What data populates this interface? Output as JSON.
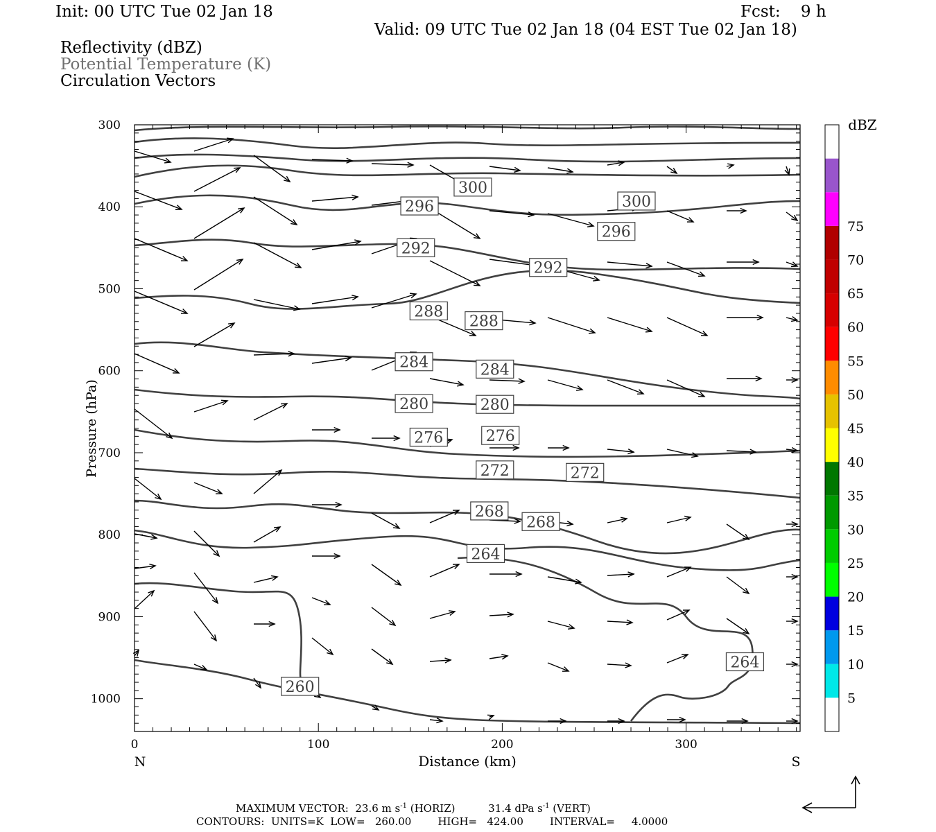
{
  "header": {
    "init": "Init: 00 UTC Tue 02 Jan 18",
    "fcst": "Fcst:    9 h",
    "valid": "Valid: 09 UTC Tue 02 Jan 18 (04 EST Tue 02 Jan 18)",
    "field1": "Reflectivity (dBZ)",
    "field2": "Potential Temperature (K)",
    "field3": "Circulation Vectors"
  },
  "footer": {
    "line1_prefix": "MAXIMUM VECTOR:  23.6 m s",
    "line1_mid": " (HORIZ)          31.4 dPa s",
    "line1_suffix": " (VERT)",
    "exp": "-1",
    "line2": "CONTOURS:  UNITS=K  LOW=   260.00        HIGH=   424.00        INTERVAL=     4.0000"
  },
  "colors": {
    "contour": "#404040",
    "scale": [
      "#ffffff",
      "#00e8e8",
      "#0099ee",
      "#0000e0",
      "#00ff00",
      "#00cc00",
      "#009900",
      "#007700",
      "#ffff00",
      "#e6c200",
      "#ff8c00",
      "#ff0000",
      "#d60000",
      "#c00000",
      "#b00000",
      "#ff00ff",
      "#9955cc",
      "#ffffff"
    ]
  },
  "chart_data": {
    "type": "cross-section",
    "xlabel": "Distance (km)",
    "ylabel": "Pressure (hPa)",
    "xlim": [
      0,
      362
    ],
    "ylim": [
      1040,
      300
    ],
    "x_ticks": [
      0,
      100,
      200,
      300
    ],
    "y_ticks": [
      300,
      400,
      500,
      600,
      700,
      800,
      900,
      1000
    ],
    "x_end_labels": {
      "left": "N",
      "right": "S"
    },
    "colorbar": {
      "unit": "dBZ",
      "ticks": [
        5,
        10,
        15,
        20,
        25,
        30,
        35,
        40,
        45,
        50,
        55,
        60,
        65,
        70,
        75
      ]
    },
    "contour_labels": [
      {
        "value": "300",
        "x": 184,
        "p": 376
      },
      {
        "value": "300",
        "x": 273,
        "p": 393
      },
      {
        "value": "296",
        "x": 155,
        "p": 399
      },
      {
        "value": "296",
        "x": 262,
        "p": 430
      },
      {
        "value": "292",
        "x": 153,
        "p": 450
      },
      {
        "value": "292",
        "x": 225,
        "p": 474
      },
      {
        "value": "288",
        "x": 160,
        "p": 527
      },
      {
        "value": "288",
        "x": 190,
        "p": 539
      },
      {
        "value": "284",
        "x": 152,
        "p": 589
      },
      {
        "value": "284",
        "x": 196,
        "p": 598
      },
      {
        "value": "280",
        "x": 152,
        "p": 640
      },
      {
        "value": "280",
        "x": 196,
        "p": 641
      },
      {
        "value": "276",
        "x": 160,
        "p": 681
      },
      {
        "value": "276",
        "x": 199,
        "p": 679
      },
      {
        "value": "272",
        "x": 196,
        "p": 721
      },
      {
        "value": "272",
        "x": 245,
        "p": 724
      },
      {
        "value": "268",
        "x": 193,
        "p": 771
      },
      {
        "value": "268",
        "x": 221,
        "p": 784
      },
      {
        "value": "264",
        "x": 191,
        "p": 823
      },
      {
        "value": "264",
        "x": 332,
        "p": 955
      },
      {
        "value": "260",
        "x": 90,
        "p": 985
      }
    ]
  }
}
